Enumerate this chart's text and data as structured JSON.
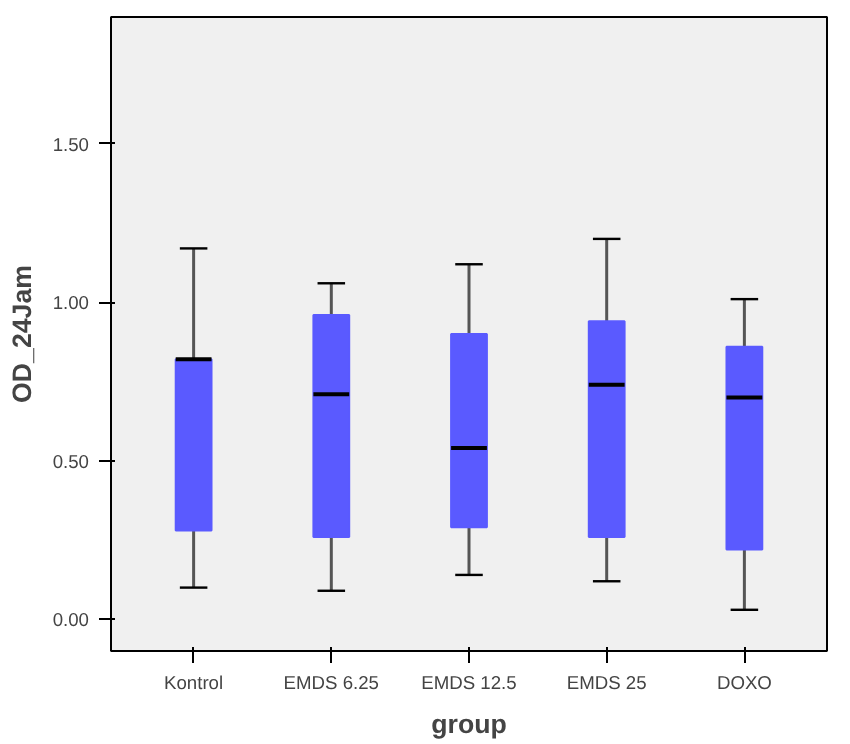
{
  "chart_data": {
    "type": "box",
    "xlabel": "group",
    "ylabel": "OD_24Jam",
    "categories": [
      "Kontrol",
      "EMDS 6.25",
      "EMDS 12.5",
      "EMDS 25",
      "DOXO"
    ],
    "color": "#5a5aff",
    "boxes": [
      {
        "low": 0.1,
        "q1": 0.28,
        "median": 0.82,
        "q3": 0.82,
        "high": 1.17
      },
      {
        "low": 0.09,
        "q1": 0.26,
        "median": 0.71,
        "q3": 0.96,
        "high": 1.06
      },
      {
        "low": 0.14,
        "q1": 0.29,
        "median": 0.54,
        "q3": 0.9,
        "high": 1.12
      },
      {
        "low": 0.12,
        "q1": 0.26,
        "median": 0.74,
        "q3": 0.94,
        "high": 1.2
      },
      {
        "low": 0.03,
        "q1": 0.22,
        "median": 0.7,
        "q3": 0.86,
        "high": 1.01
      }
    ],
    "ylim": [
      -0.1,
      1.9
    ],
    "yticks": [
      {
        "value": 0,
        "label": "0.00"
      },
      {
        "value": 0.5,
        "label": "0.50"
      },
      {
        "value": 1.0,
        "label": "1.00"
      },
      {
        "value": 1.5,
        "label": "1.50"
      }
    ],
    "grid": false
  }
}
